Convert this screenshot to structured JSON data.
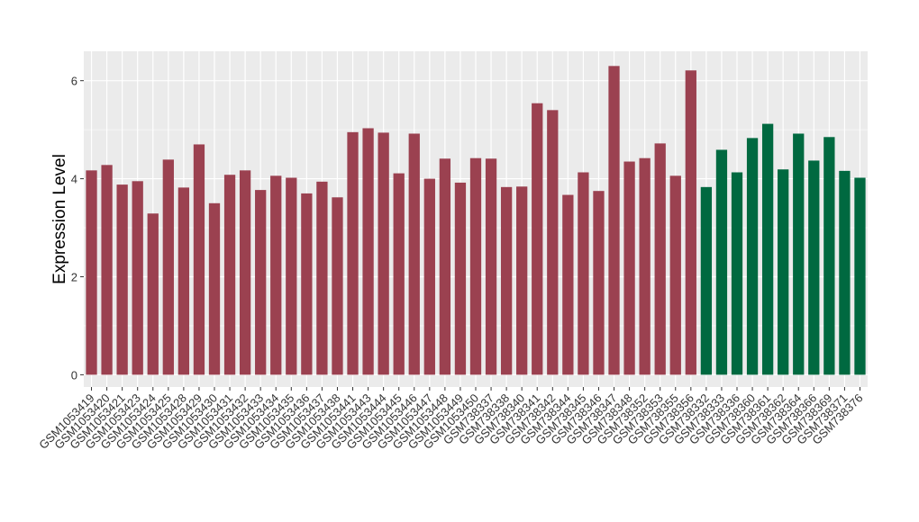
{
  "chart_data": {
    "type": "bar",
    "ylabel": "Expression Level",
    "ylim": [
      -0.25,
      6.6
    ],
    "yticks": [
      0,
      2,
      4,
      6
    ],
    "grid": true,
    "colors": {
      "group_a": "#9B4150",
      "group_b": "#006940",
      "panel": "#EBEBEB",
      "grid": "#FFFFFF"
    },
    "categories": [
      "GSM1053419",
      "GSM1053420",
      "GSM1053421",
      "GSM1053423",
      "GSM1053424",
      "GSM1053425",
      "GSM1053428",
      "GSM1053429",
      "GSM1053430",
      "GSM1053431",
      "GSM1053432",
      "GSM1053433",
      "GSM1053434",
      "GSM1053435",
      "GSM1053436",
      "GSM1053437",
      "GSM1053438",
      "GSM1053441",
      "GSM1053443",
      "GSM1053444",
      "GSM1053445",
      "GSM1053446",
      "GSM1053447",
      "GSM1053448",
      "GSM1053449",
      "GSM1053450",
      "GSM738337",
      "GSM738338",
      "GSM738340",
      "GSM738341",
      "GSM738342",
      "GSM738344",
      "GSM738345",
      "GSM738346",
      "GSM738347",
      "GSM738348",
      "GSM738352",
      "GSM738353",
      "GSM738355",
      "GSM738356",
      "GSM738332",
      "GSM738333",
      "GSM738336",
      "GSM738360",
      "GSM738361",
      "GSM738362",
      "GSM738364",
      "GSM738366",
      "GSM738369",
      "GSM738371",
      "GSM738376"
    ],
    "values": [
      4.17,
      4.28,
      3.88,
      3.95,
      3.29,
      4.39,
      3.82,
      4.7,
      3.5,
      4.08,
      4.17,
      3.77,
      4.06,
      4.02,
      3.7,
      3.94,
      3.62,
      4.95,
      5.03,
      4.94,
      4.11,
      4.92,
      4.0,
      4.41,
      3.92,
      4.42,
      4.41,
      3.83,
      3.84,
      5.54,
      5.4,
      3.67,
      4.13,
      3.75,
      6.3,
      4.35,
      4.42,
      4.72,
      4.06,
      6.21,
      3.83,
      4.59,
      4.13,
      4.83,
      5.12,
      4.19,
      4.92,
      4.37,
      4.85,
      4.16,
      4.02
    ],
    "groups": [
      "a",
      "a",
      "a",
      "a",
      "a",
      "a",
      "a",
      "a",
      "a",
      "a",
      "a",
      "a",
      "a",
      "a",
      "a",
      "a",
      "a",
      "a",
      "a",
      "a",
      "a",
      "a",
      "a",
      "a",
      "a",
      "a",
      "a",
      "a",
      "a",
      "a",
      "a",
      "a",
      "a",
      "a",
      "a",
      "a",
      "a",
      "a",
      "a",
      "a",
      "b",
      "b",
      "b",
      "b",
      "b",
      "b",
      "b",
      "b",
      "b",
      "b",
      "b"
    ]
  }
}
